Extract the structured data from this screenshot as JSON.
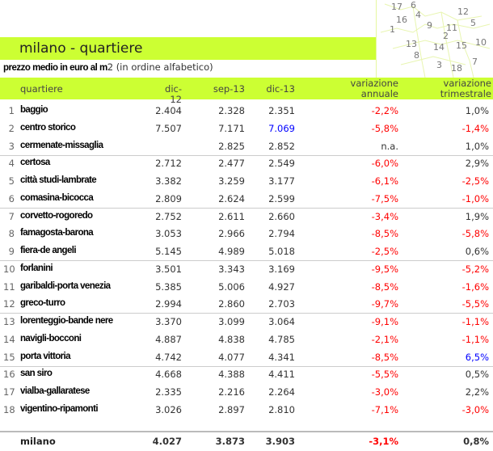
{
  "title": "milano - quartiere",
  "subtitle_bold": "prezzo medio in euro al m",
  "subtitle_rest": "2 (in ordine alfabetico)",
  "map_labels": [
    "17",
    "6",
    "12",
    "4",
    "16",
    "9",
    "11",
    "5",
    "1",
    "2",
    "13",
    "14",
    "15",
    "10",
    "8",
    "7",
    "3",
    "18"
  ],
  "headers": {
    "quartiere": "quartiere",
    "dic12": "dic-12",
    "sep13": "sep-13",
    "dic13": "dic-13",
    "var_a1": "variazione",
    "var_a2": "annuale",
    "var_t1": "variazione",
    "var_t2": "trimestrale"
  },
  "colors": {
    "band": "#ccff33",
    "negative": "#ff0000",
    "highlight": "#0000ff"
  },
  "rows": [
    {
      "n": "1",
      "name": "baggio",
      "d12": "2.404",
      "s13": "2.328",
      "d13": "2.351",
      "va": "-2,2%",
      "vt": "1,0%"
    },
    {
      "n": "2",
      "name": "centro storico",
      "d12": "7.507",
      "s13": "7.171",
      "d13": "7.069",
      "va": "-5,8%",
      "vt": "-1,4%"
    },
    {
      "n": "3",
      "name": "cermenate-missaglia",
      "d12": "",
      "s13": "2.825",
      "d13": "2.852",
      "va": "n.a.",
      "vt": "1,0%"
    },
    {
      "n": "4",
      "name": "certosa",
      "d12": "2.712",
      "s13": "2.477",
      "d13": "2.549",
      "va": "-6,0%",
      "vt": "2,9%"
    },
    {
      "n": "5",
      "name": "città studi-lambrate",
      "d12": "3.382",
      "s13": "3.259",
      "d13": "3.177",
      "va": "-6,1%",
      "vt": "-2,5%"
    },
    {
      "n": "6",
      "name": "comasina-bicocca",
      "d12": "2.809",
      "s13": "2.624",
      "d13": "2.599",
      "va": "-7,5%",
      "vt": "-1,0%"
    },
    {
      "n": "7",
      "name": "corvetto-rogoredo",
      "d12": "2.752",
      "s13": "2.611",
      "d13": "2.660",
      "va": "-3,4%",
      "vt": "1,9%"
    },
    {
      "n": "8",
      "name": "famagosta-barona",
      "d12": "3.053",
      "s13": "2.966",
      "d13": "2.794",
      "va": "-8,5%",
      "vt": "-5,8%"
    },
    {
      "n": "9",
      "name": "fiera-de angeli",
      "d12": "5.145",
      "s13": "4.989",
      "d13": "5.018",
      "va": "-2,5%",
      "vt": "0,6%"
    },
    {
      "n": "10",
      "name": "forlanini",
      "d12": "3.501",
      "s13": "3.343",
      "d13": "3.169",
      "va": "-9,5%",
      "vt": "-5,2%"
    },
    {
      "n": "11",
      "name": "garibaldi-porta venezia",
      "d12": "5.385",
      "s13": "5.006",
      "d13": "4.927",
      "va": "-8,5%",
      "vt": "-1,6%"
    },
    {
      "n": "12",
      "name": "greco-turro",
      "d12": "2.994",
      "s13": "2.860",
      "d13": "2.703",
      "va": "-9,7%",
      "vt": "-5,5%"
    },
    {
      "n": "13",
      "name": "lorenteggio-bande nere",
      "d12": "3.370",
      "s13": "3.099",
      "d13": "3.064",
      "va": "-9,1%",
      "vt": "-1,1%"
    },
    {
      "n": "14",
      "name": "navigli-bocconi",
      "d12": "4.887",
      "s13": "4.838",
      "d13": "4.785",
      "va": "-2,1%",
      "vt": "-1,1%"
    },
    {
      "n": "15",
      "name": "porta vittoria",
      "d12": "4.742",
      "s13": "4.077",
      "d13": "4.341",
      "va": "-8,5%",
      "vt": "6,5%"
    },
    {
      "n": "16",
      "name": "san siro",
      "d12": "4.668",
      "s13": "4.388",
      "d13": "4.411",
      "va": "-5,5%",
      "vt": "0,5%"
    },
    {
      "n": "17",
      "name": "vialba-gallaratese",
      "d12": "2.335",
      "s13": "2.216",
      "d13": "2.264",
      "va": "-3,0%",
      "vt": "2,2%"
    },
    {
      "n": "18",
      "name": "vigentino-ripamonti",
      "d12": "3.026",
      "s13": "2.897",
      "d13": "2.810",
      "va": "-7,1%",
      "vt": "-3,0%"
    }
  ],
  "total": {
    "name": "milano",
    "d12": "4.027",
    "s13": "3.873",
    "d13": "3.903",
    "va": "-3,1%",
    "vt": "0,8%"
  }
}
